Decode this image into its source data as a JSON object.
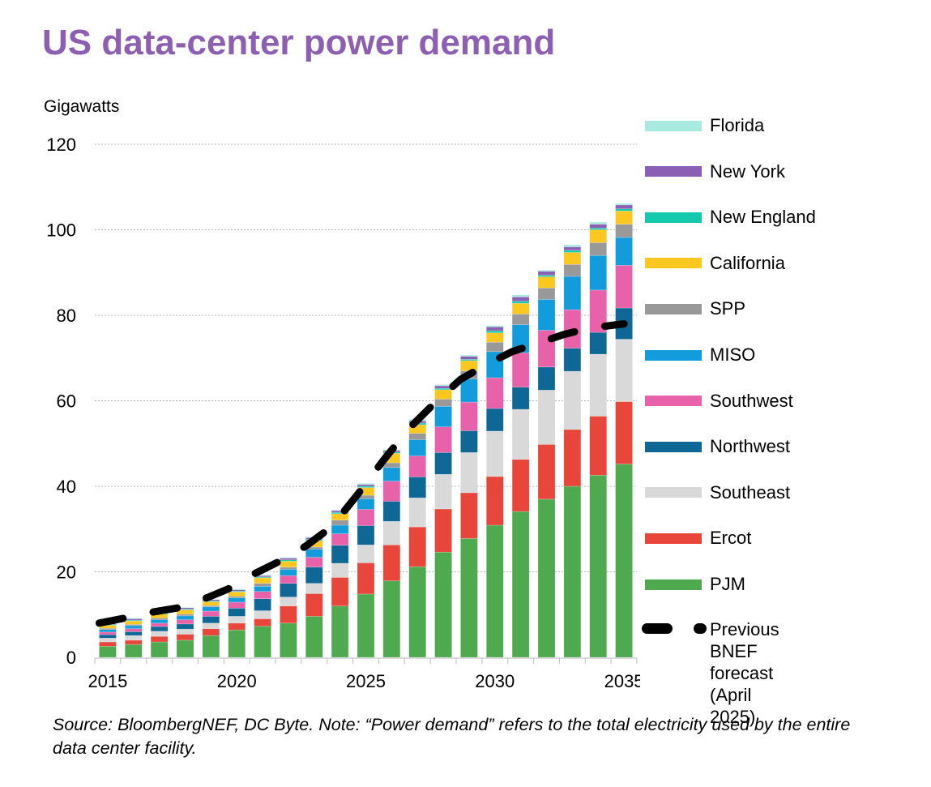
{
  "title": "US data-center power demand",
  "footer_note": "Source: BloombergNEF, DC Byte. Note: “Power demand” refers to the total electricity used by the entire data center facility.",
  "chart_data": {
    "type": "bar",
    "stacked": true,
    "title": "US data-center power demand",
    "ylabel": "Gigawatts",
    "xlabel": "",
    "ylim": [
      0,
      120
    ],
    "yticks": [
      0,
      20,
      40,
      60,
      80,
      100,
      120
    ],
    "xtick_labels": [
      "2015",
      "2020",
      "2025",
      "2030",
      "2035"
    ],
    "grid": "horizontal-dotted",
    "legend_position": "right",
    "categories": [
      "2015",
      "2016",
      "2017",
      "2018",
      "2019",
      "2020",
      "2021",
      "2022",
      "2023",
      "2024",
      "2025",
      "2026",
      "2027",
      "2028",
      "2029",
      "2030",
      "2031",
      "2032",
      "2033",
      "2034",
      "2035"
    ],
    "series": [
      {
        "name": "PJM",
        "color": "#4ea94f",
        "values": [
          2.6,
          3.0,
          3.6,
          4.0,
          5.1,
          6.4,
          7.3,
          8.0,
          9.6,
          12.0,
          14.8,
          17.9,
          21.2,
          24.6,
          27.8,
          30.9,
          34.1,
          37.0,
          40.0,
          42.6,
          45.2
        ]
      },
      {
        "name": "Ercot",
        "color": "#e8463a",
        "values": [
          1.0,
          1.0,
          1.3,
          1.4,
          1.6,
          1.6,
          1.7,
          4.0,
          5.3,
          6.7,
          7.3,
          8.4,
          9.3,
          10.1,
          10.7,
          11.4,
          12.2,
          12.8,
          13.3,
          13.8,
          14.6
        ]
      },
      {
        "name": "Southeast",
        "color": "#d9d9d9",
        "values": [
          0.9,
          1.1,
          1.2,
          1.2,
          1.3,
          1.6,
          1.9,
          2.1,
          2.4,
          3.3,
          4.2,
          5.5,
          6.8,
          8.1,
          9.4,
          10.6,
          11.7,
          12.7,
          13.6,
          14.5,
          14.6
        ]
      },
      {
        "name": "Northwest",
        "color": "#0f6795",
        "values": [
          0.8,
          0.9,
          1.1,
          1.2,
          1.6,
          1.9,
          2.8,
          3.2,
          3.8,
          4.2,
          4.5,
          4.7,
          4.9,
          5.1,
          5.1,
          5.3,
          5.2,
          5.4,
          5.4,
          5.1,
          7.3
        ]
      },
      {
        "name": "Southwest",
        "color": "#e862a9",
        "values": [
          0.6,
          0.7,
          0.8,
          1.0,
          1.2,
          1.4,
          1.7,
          1.8,
          2.3,
          2.7,
          3.8,
          4.7,
          4.9,
          6.0,
          6.7,
          7.2,
          8.0,
          8.6,
          9.0,
          9.9,
          10.0
        ]
      },
      {
        "name": "MISO",
        "color": "#139cdc",
        "values": [
          0.6,
          0.7,
          0.8,
          0.9,
          1.0,
          1.0,
          1.2,
          1.5,
          1.9,
          2.0,
          2.5,
          3.2,
          3.8,
          4.8,
          5.4,
          6.1,
          6.6,
          7.2,
          7.8,
          8.1,
          6.5
        ]
      },
      {
        "name": "SPP",
        "color": "#999999",
        "values": [
          0.3,
          0.3,
          0.4,
          0.4,
          0.3,
          0.4,
          0.7,
          0.5,
          0.5,
          1.2,
          0.8,
          1.1,
          1.5,
          1.7,
          1.9,
          2.2,
          2.5,
          2.7,
          2.8,
          3.0,
          3.1
        ]
      },
      {
        "name": "California",
        "color": "#fcc820",
        "values": [
          0.7,
          0.8,
          0.9,
          1.0,
          0.9,
          1.0,
          1.3,
          1.4,
          1.5,
          1.5,
          1.8,
          2.2,
          2.0,
          2.2,
          2.4,
          2.2,
          2.5,
          2.6,
          2.8,
          3.0,
          3.1
        ]
      },
      {
        "name": "New England",
        "color": "#14c9ae",
        "values": [
          0.2,
          0.2,
          0.2,
          0.2,
          0.2,
          0.2,
          0.2,
          0.3,
          0.3,
          0.3,
          0.3,
          0.3,
          0.4,
          0.3,
          0.3,
          0.5,
          0.5,
          0.4,
          0.5,
          0.4,
          0.5
        ]
      },
      {
        "name": "New York",
        "color": "#8a5fb4",
        "values": [
          0.2,
          0.3,
          0.3,
          0.3,
          0.3,
          0.3,
          0.3,
          0.4,
          0.4,
          0.4,
          0.4,
          0.4,
          0.5,
          0.6,
          0.7,
          0.9,
          1.0,
          0.9,
          0.8,
          0.9,
          0.9
        ]
      },
      {
        "name": "Florida",
        "color": "#a8eadf",
        "values": [
          0.1,
          0.2,
          0.0,
          0.1,
          0.0,
          0.2,
          0.2,
          0.2,
          0.2,
          0.2,
          0.3,
          0.2,
          0.4,
          0.3,
          0.3,
          0.3,
          0.5,
          0.3,
          0.5,
          0.5,
          0.4
        ]
      }
    ],
    "overlay_line": {
      "name": "Previous BNEF forecast (April 2025)",
      "style": "dashed",
      "color": "#000000",
      "values": [
        8.0,
        9.2,
        10.5,
        11.5,
        13.5,
        16.0,
        19.5,
        22.5,
        26.0,
        30.5,
        38.0,
        46.0,
        53.5,
        59.5,
        65.0,
        68.5,
        71.5,
        73.5,
        75.5,
        77.0,
        78.0
      ]
    }
  },
  "legend": {
    "items": [
      {
        "label": "Florida",
        "color": "#a8eadf",
        "kind": "bar"
      },
      {
        "label": "New York",
        "color": "#8a5fb4",
        "kind": "bar"
      },
      {
        "label": "New England",
        "color": "#14c9ae",
        "kind": "bar"
      },
      {
        "label": "California",
        "color": "#fcc820",
        "kind": "bar"
      },
      {
        "label": "SPP",
        "color": "#999999",
        "kind": "bar"
      },
      {
        "label": "MISO",
        "color": "#139cdc",
        "kind": "bar"
      },
      {
        "label": "Southwest",
        "color": "#e862a9",
        "kind": "bar"
      },
      {
        "label": "Northwest",
        "color": "#0f6795",
        "kind": "bar"
      },
      {
        "label": "Southeast",
        "color": "#d9d9d9",
        "kind": "bar"
      },
      {
        "label": "Ercot",
        "color": "#e8463a",
        "kind": "bar"
      },
      {
        "label": "PJM",
        "color": "#4ea94f",
        "kind": "bar"
      },
      {
        "label": "Previous BNEF\nforecast (April 2025)",
        "color": "#000000",
        "kind": "dash"
      }
    ]
  }
}
